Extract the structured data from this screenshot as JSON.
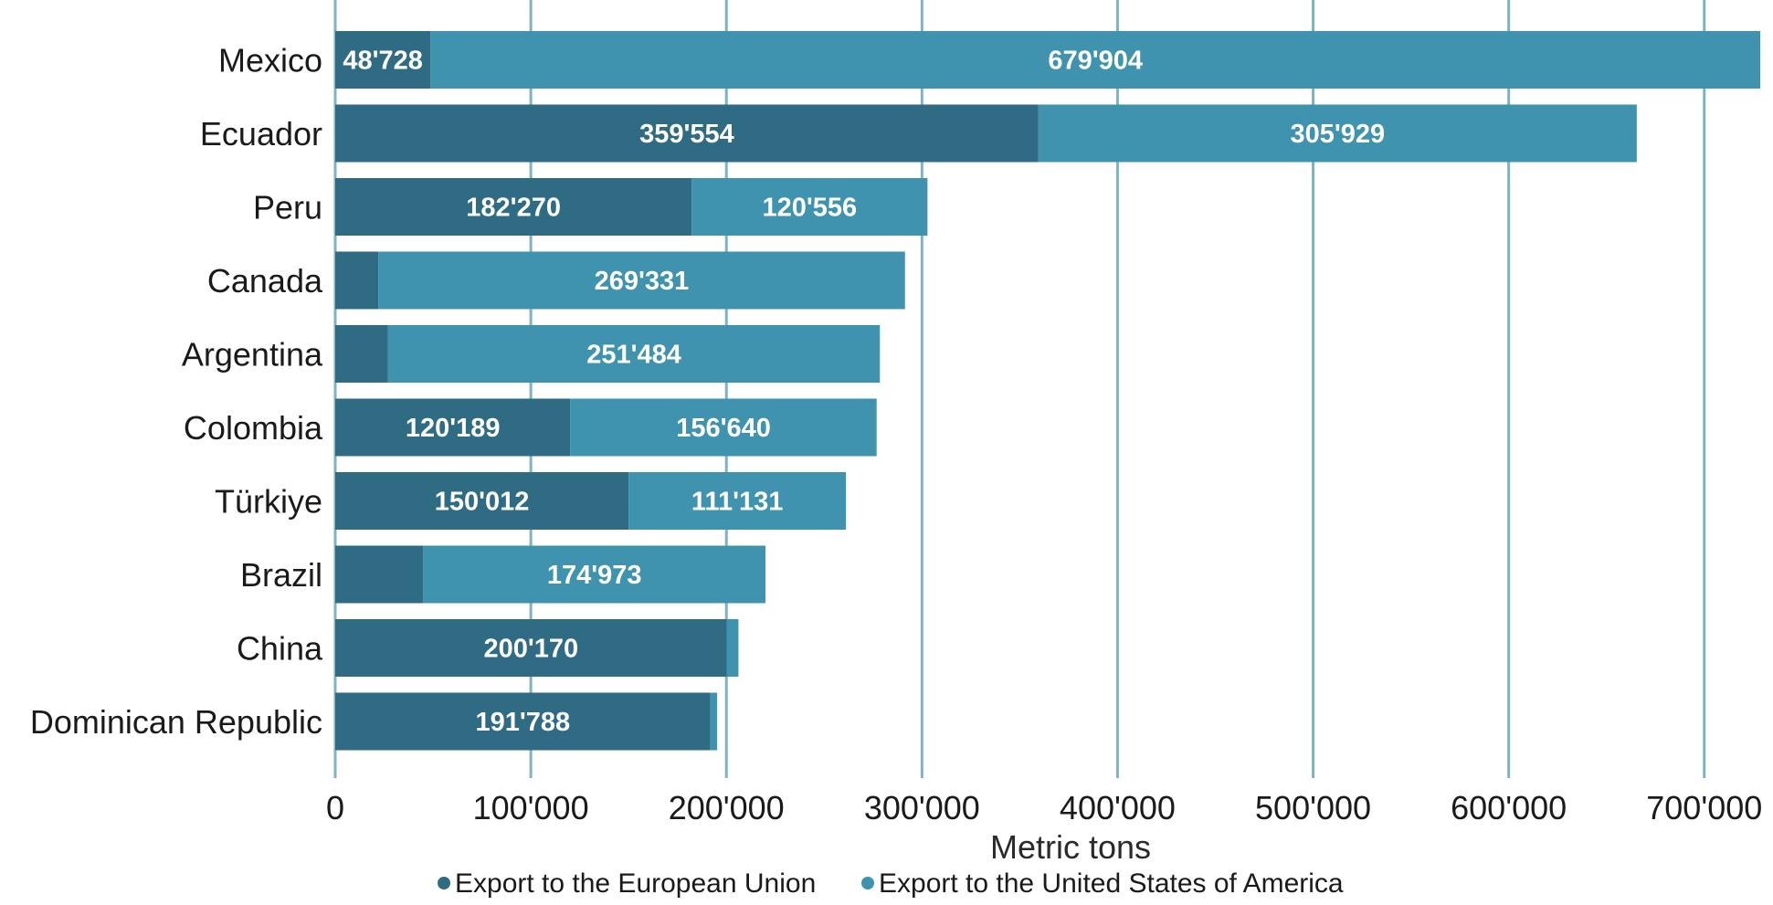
{
  "chart_data": {
    "type": "bar",
    "orientation": "horizontal",
    "stacked": true,
    "categories": [
      "Mexico",
      "Ecuador",
      "Peru",
      "Canada",
      "Argentina",
      "Colombia",
      "Türkiye",
      "Brazil",
      "China",
      "Dominican Republic"
    ],
    "series": [
      {
        "name": "Export to the European Union",
        "color": "#2f6c84",
        "values": [
          48728,
          359554,
          182270,
          22000,
          27000,
          120189,
          150012,
          45000,
          200170,
          191788
        ],
        "labels": [
          "48'728",
          "359'554",
          "182'270",
          "",
          "",
          "120'189",
          "150'012",
          "",
          "200'170",
          "191'788"
        ]
      },
      {
        "name": "Export to the United States of America",
        "color": "#3f93ae",
        "values": [
          679904,
          305929,
          120556,
          269331,
          251484,
          156640,
          111131,
          174973,
          6000,
          3500
        ],
        "labels": [
          "679'904",
          "305'929",
          "120'556",
          "269'331",
          "251'484",
          "156'640",
          "111'131",
          "174'973",
          "",
          ""
        ]
      }
    ],
    "xlabel": "Metric tons",
    "ylabel": "",
    "xlim": [
      0,
      730000
    ],
    "xticks": [
      0,
      100000,
      200000,
      300000,
      400000,
      500000,
      600000,
      700000
    ],
    "xtick_labels": [
      "0",
      "100'000",
      "200'000",
      "300'000",
      "400'000",
      "500'000",
      "600'000",
      "700'000"
    ],
    "grid": "vertical",
    "legend": "bottom-center"
  }
}
